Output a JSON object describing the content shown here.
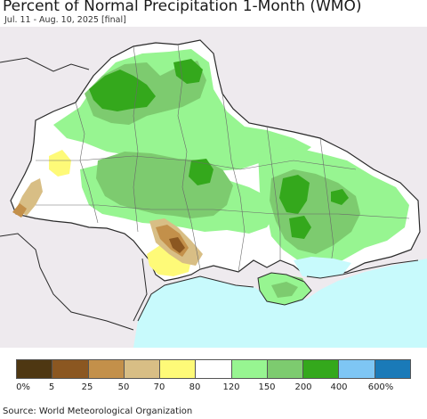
{
  "title": "Percent of Normal Precipitation 1-Month (WMO)",
  "subtitle": "Jul. 11 - Aug. 10, 2025 [final]",
  "source": "Source: World Meteorological Organization",
  "legend": {
    "colors": [
      "#4e3712",
      "#8b5721",
      "#c3904a",
      "#d8be85",
      "#fefa78",
      "#ffffff",
      "#97f591",
      "#7dcb6f",
      "#34a81c",
      "#7ec6f4",
      "#1a7ab8"
    ],
    "labels": [
      "0%",
      "5",
      "25",
      "50",
      "70",
      "80",
      "120",
      "150",
      "200",
      "400",
      "600%"
    ]
  },
  "map_colors": {
    "background": "#eeeaee",
    "sea": "#c8fafc",
    "normal": "#ffffff",
    "wet": "#97f591",
    "wetter": "#7dcb6f",
    "wettest": "#34a81c",
    "dry_light": "#fefa78",
    "dry": "#d8be85",
    "drier": "#c3904a",
    "driest": "#8b5721",
    "border": "#2a2a2a",
    "admin_border": "#6a6a6a"
  }
}
